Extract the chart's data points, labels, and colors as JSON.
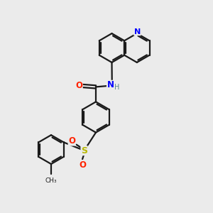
{
  "background_color": "#ebebeb",
  "bond_color": "#1a1a1a",
  "N_color": "#0000ff",
  "O_color": "#ff2200",
  "S_color": "#b8b800",
  "H_color": "#5a8a8a",
  "figsize": [
    3.0,
    3.0
  ],
  "dpi": 100,
  "xlim": [
    0,
    10
  ],
  "ylim": [
    0,
    10
  ]
}
